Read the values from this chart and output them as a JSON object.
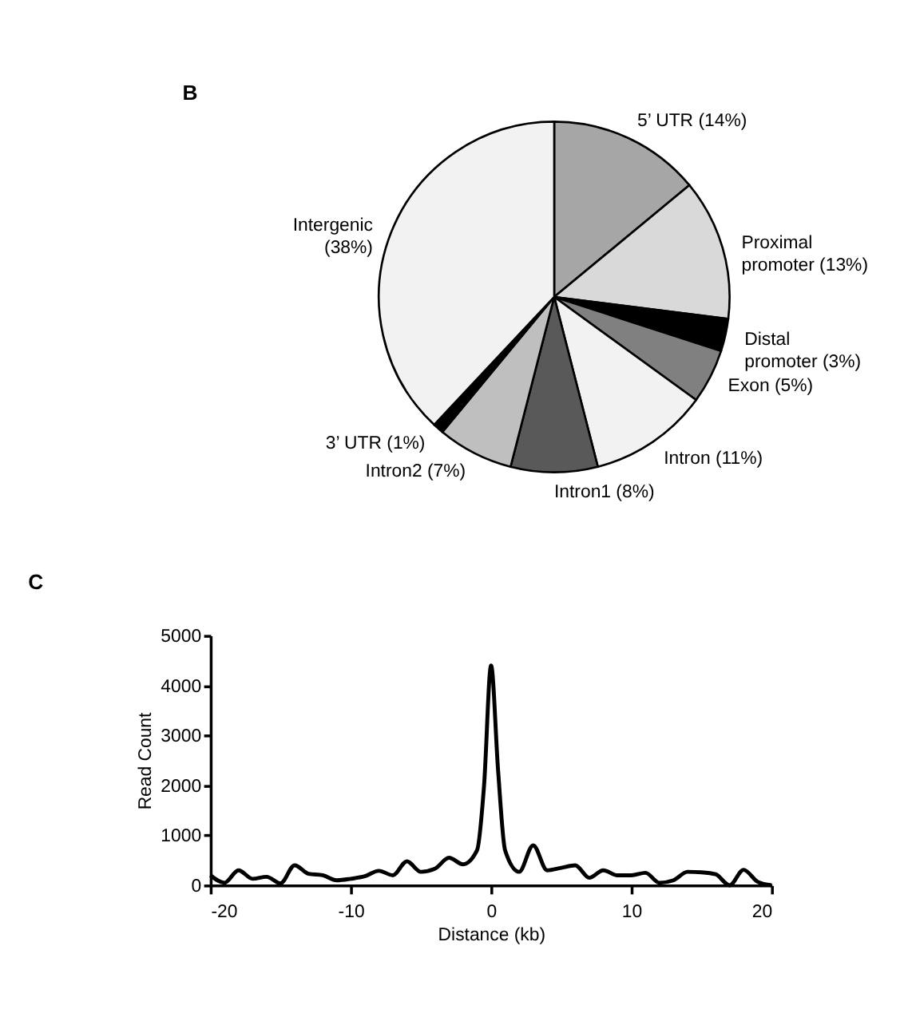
{
  "chart_data": [
    {
      "type": "pie",
      "annotations": [
        "B"
      ],
      "categories": [
        "5’ UTR",
        "Proximal promoter",
        "Distal promoter",
        "Exon",
        "Intron",
        "Intron1",
        "Intron2",
        "3’ UTR",
        "Intergenic"
      ],
      "values": [
        14,
        13,
        3,
        5,
        11,
        8,
        7,
        1,
        38
      ],
      "value_labels": [
        "(14%)",
        "(13%)",
        "(3%)",
        "(5%)",
        "(11%)",
        "(8%)",
        "(7%)",
        "(1%)",
        "(38%)"
      ],
      "colors": [
        "#a6a6a6",
        "#d9d9d9",
        "#000000",
        "#808080",
        "#f2f2f2",
        "#595959",
        "#bfbfbf",
        "#000000",
        "#f2f2f2"
      ],
      "legend": false
    },
    {
      "type": "line",
      "annotations": [
        "C"
      ],
      "xlabel": "Distance (kb)",
      "ylabel": "Read Count",
      "x": [
        -20,
        -19,
        -18,
        -17,
        -16,
        -15,
        -14,
        -13,
        -12,
        -11,
        -10,
        -9,
        -8,
        -7,
        -6,
        -5,
        -4,
        -3,
        -2,
        -1,
        -0.5,
        0,
        0.5,
        1,
        2,
        3,
        4,
        5,
        6,
        7,
        8,
        9,
        10,
        11,
        12,
        13,
        14,
        15,
        16,
        17,
        18,
        19,
        20
      ],
      "series": [
        {
          "color": "#000000",
          "values": [
            200,
            50,
            300,
            130,
            170,
            40,
            400,
            230,
            200,
            100,
            130,
            180,
            290,
            200,
            480,
            270,
            330,
            550,
            420,
            700,
            2000,
            4400,
            2300,
            700,
            270,
            800,
            300,
            350,
            400,
            150,
            300,
            200,
            200,
            250,
            50,
            100,
            270,
            260,
            220,
            0,
            310,
            70,
            0
          ]
        }
      ],
      "xlim": [
        -20,
        20
      ],
      "xticks": [
        -20,
        -10,
        0,
        10,
        20
      ],
      "ylim": [
        0,
        5000
      ],
      "yticks": [
        0,
        1000,
        2000,
        3000,
        4000,
        5000
      ],
      "grid": false,
      "marker": "none",
      "line_style": "solid"
    }
  ]
}
